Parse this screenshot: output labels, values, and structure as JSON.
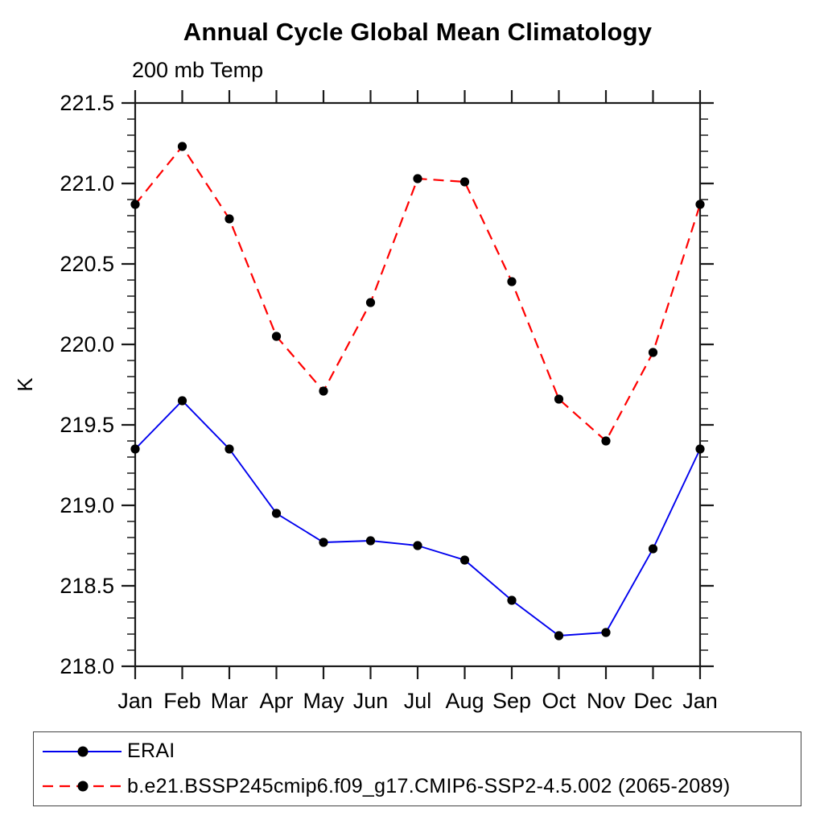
{
  "page": {
    "background": "#ffffff"
  },
  "chart_data": {
    "type": "line",
    "title": "Annual Cycle Global Mean Climatology",
    "subtitle": "200 mb Temp",
    "ylabel": "K",
    "xlabel": "",
    "categories": [
      "Jan",
      "Feb",
      "Mar",
      "Apr",
      "May",
      "Jun",
      "Jul",
      "Aug",
      "Sep",
      "Oct",
      "Nov",
      "Dec",
      "Jan"
    ],
    "ylim": [
      218.0,
      221.5
    ],
    "ytick_step": 0.5,
    "yminor_step": 0.1,
    "grid": false,
    "legend_position": "bottom",
    "axis_color": "#1a1a1a",
    "marker_color": "#000000",
    "series": [
      {
        "name": "ERAI",
        "color": "#0000ee",
        "style": "solid",
        "marker": "circle",
        "values": [
          219.35,
          219.65,
          219.35,
          218.95,
          218.77,
          218.78,
          218.75,
          218.66,
          218.41,
          218.19,
          218.21,
          218.73,
          219.35
        ]
      },
      {
        "name": "b.e21.BSSP245cmip6.f09_g17.CMIP6-SSP2-4.5.002 (2065-2089)",
        "color": "#ff0000",
        "style": "dashed",
        "marker": "circle",
        "values": [
          220.87,
          221.23,
          220.78,
          220.05,
          219.71,
          220.26,
          221.03,
          221.01,
          220.39,
          219.66,
          219.4,
          219.95,
          220.87
        ]
      }
    ]
  }
}
